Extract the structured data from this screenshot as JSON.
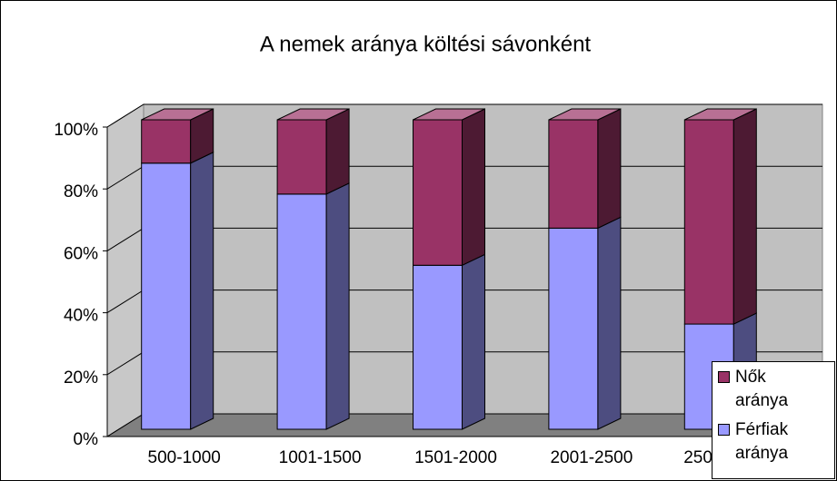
{
  "chart_data": {
    "type": "bar3d-stacked",
    "title": "A nemek aránya költési sávonként",
    "categories": [
      "500-1000",
      "1001-1500",
      "1501-2000",
      "2001-2500",
      "2501- 3000"
    ],
    "series": [
      {
        "name": "Férfiak aránya",
        "color": "#9999ff",
        "values": [
          86,
          76,
          53,
          65,
          34
        ]
      },
      {
        "name": "Nők aránya",
        "color": "#993366",
        "values": [
          14,
          24,
          47,
          35,
          66
        ]
      }
    ],
    "ylim": [
      0,
      100
    ],
    "yticks": [
      {
        "value": 0,
        "label": "0%"
      },
      {
        "value": 20,
        "label": "20%"
      },
      {
        "value": 40,
        "label": "40%"
      },
      {
        "value": 60,
        "label": "60%"
      },
      {
        "value": 80,
        "label": "80%"
      },
      {
        "value": 100,
        "label": "100%"
      }
    ],
    "grid": true,
    "legend": "bottom-right"
  }
}
